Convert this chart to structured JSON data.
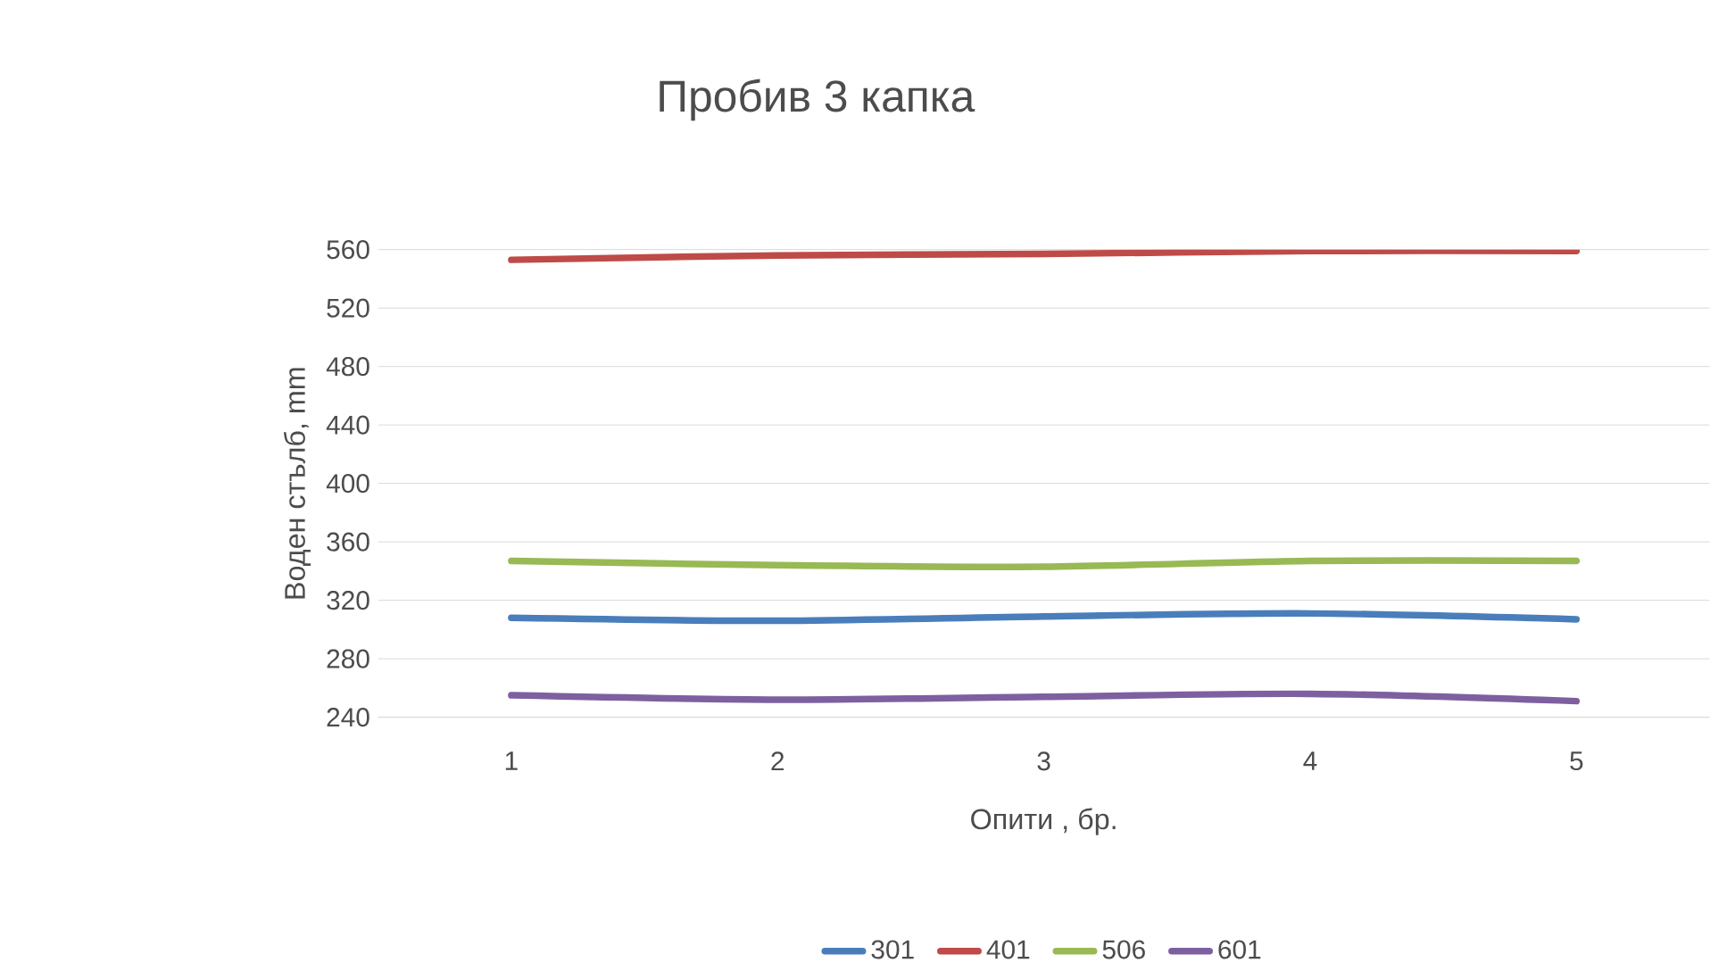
{
  "chart_data": {
    "type": "line",
    "title": "Пробив 3 капка",
    "xlabel": "Опити , бр.",
    "ylabel": "Воден стълб, mm",
    "categories": [
      "1",
      "2",
      "3",
      "4",
      "5"
    ],
    "series": [
      {
        "name": "301",
        "color": "#4a7ebb",
        "values": [
          308,
          306,
          309,
          311,
          307
        ]
      },
      {
        "name": "401",
        "color": "#be4b48",
        "values": [
          553,
          556,
          557,
          559,
          559
        ]
      },
      {
        "name": "506",
        "color": "#98b954",
        "values": [
          347,
          344,
          343,
          347,
          347
        ]
      },
      {
        "name": "601",
        "color": "#7d60a0",
        "values": [
          255,
          252,
          254,
          256,
          251
        ]
      }
    ],
    "ylim": [
      240,
      560
    ],
    "yticks": [
      240,
      280,
      320,
      360,
      400,
      440,
      480,
      520,
      560
    ],
    "grid": "y",
    "legend": "bottom",
    "marker": "none",
    "line_style": "solid"
  }
}
